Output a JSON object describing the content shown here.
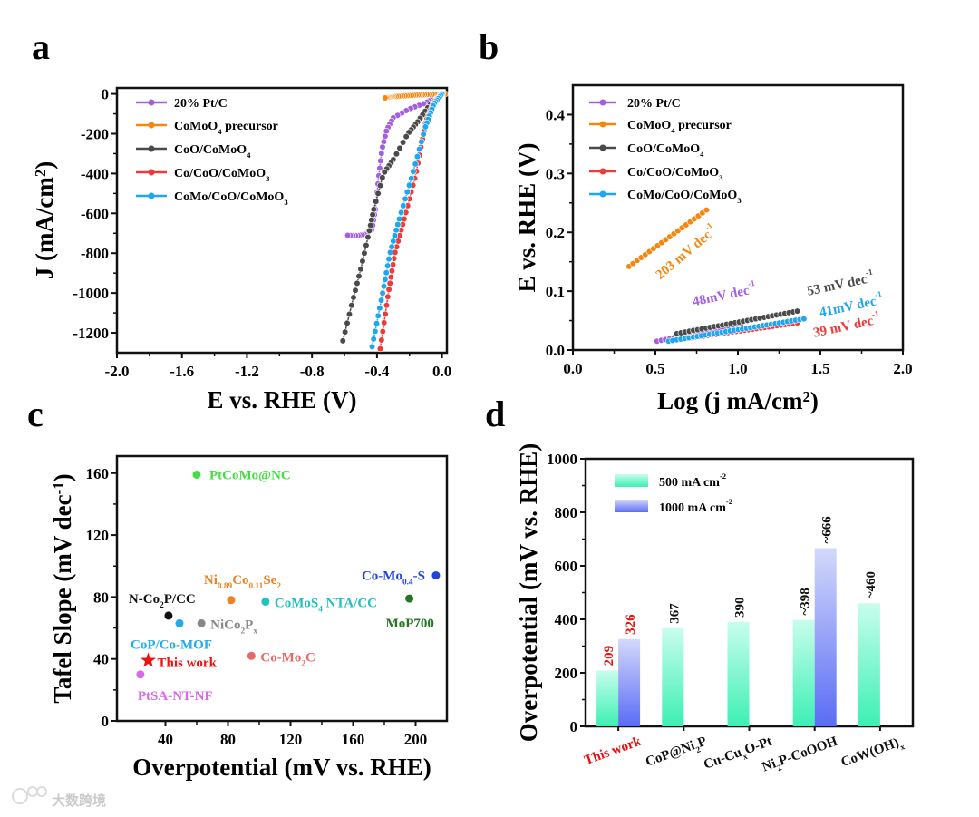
{
  "watermark": "大数跨境",
  "chart_data": [
    {
      "panel": "a",
      "type": "line",
      "xlabel": "E vs. RHE (V)",
      "ylabel": "J (mA/cm^{2})",
      "xlim": [
        -2.0,
        0.03
      ],
      "ylim": [
        -1300,
        30
      ],
      "xticks": [
        "-2.0",
        "-1.6",
        "-1.2",
        "-0.8",
        "-0.4",
        "0.0"
      ],
      "yticks": [
        "0",
        "-200",
        "-400",
        "-600",
        "-800",
        "-1000",
        "-1200"
      ],
      "series": [
        {
          "name": "20% Pt/C",
          "color": "#a45ee0",
          "points": [
            [
              0,
              0
            ],
            [
              -0.05,
              -20
            ],
            [
              -0.1,
              -45
            ],
            [
              -0.2,
              -75
            ],
            [
              -0.3,
              -120
            ],
            [
              -0.34,
              -180
            ],
            [
              -0.37,
              -280
            ],
            [
              -0.39,
              -420
            ],
            [
              -0.41,
              -580
            ],
            [
              -0.43,
              -680
            ],
            [
              -0.47,
              -705
            ],
            [
              -0.52,
              -712
            ],
            [
              -0.58,
              -710
            ]
          ]
        },
        {
          "name": "CoMoO_{4} precursor",
          "color": "#f5870f",
          "points": [
            [
              0.02,
              0
            ],
            [
              -0.1,
              -3
            ],
            [
              -0.2,
              -8
            ],
            [
              -0.3,
              -14
            ],
            [
              -0.35,
              -20
            ]
          ]
        },
        {
          "name": "CoO/CoMoO_{4}",
          "color": "#4a4a4a",
          "points": [
            [
              0,
              0
            ],
            [
              -0.08,
              -60
            ],
            [
              -0.15,
              -140
            ],
            [
              -0.21,
              -200
            ],
            [
              -0.3,
              -330
            ],
            [
              -0.36,
              -400
            ],
            [
              -0.42,
              -580
            ],
            [
              -0.45,
              -700
            ],
            [
              -0.5,
              -880
            ],
            [
              -0.55,
              -1040
            ],
            [
              -0.61,
              -1240
            ]
          ]
        },
        {
          "name": "Co/CoO/CoMoO_{3}",
          "color": "#ee3a3a",
          "points": [
            [
              0,
              0
            ],
            [
              -0.05,
              -40
            ],
            [
              -0.1,
              -140
            ],
            [
              -0.16,
              -400
            ],
            [
              -0.23,
              -620
            ],
            [
              -0.29,
              -800
            ],
            [
              -0.33,
              -1000
            ],
            [
              -0.38,
              -1280
            ]
          ]
        },
        {
          "name": "CoMo/CoO/CoMoO_{3}",
          "color": "#1ea6f0",
          "points": [
            [
              0,
              0
            ],
            [
              -0.05,
              -50
            ],
            [
              -0.1,
              -160
            ],
            [
              -0.18,
              -400
            ],
            [
              -0.26,
              -620
            ],
            [
              -0.32,
              -800
            ],
            [
              -0.37,
              -1020
            ],
            [
              -0.43,
              -1270
            ]
          ]
        }
      ]
    },
    {
      "panel": "b",
      "type": "line",
      "xlabel": "Log (j mA/cm^{2})",
      "ylabel": "E vs. RHE (V)",
      "xlim": [
        0,
        2.0
      ],
      "ylim": [
        0,
        0.45
      ],
      "xticks": [
        "0.0",
        "0.5",
        "1.0",
        "1.5",
        "2.0"
      ],
      "yticks": [
        "0.0",
        "0.1",
        "0.2",
        "0.3",
        "0.4"
      ],
      "series": [
        {
          "name": "20% Pt/C",
          "color": "#a45ee0",
          "x": [
            0.51,
            1.02
          ],
          "y": [
            0.015,
            0.045
          ],
          "annotation": "48mV dec^{-1}"
        },
        {
          "name": "CoMoO_{4} precursor",
          "color": "#f5870f",
          "x": [
            0.34,
            0.81
          ],
          "y": [
            0.142,
            0.238
          ],
          "annotation": "203 mV dec^{-1}"
        },
        {
          "name": "CoO/CoMoO_{4}",
          "color": "#4a4a4a",
          "x": [
            0.63,
            1.36
          ],
          "y": [
            0.028,
            0.066
          ],
          "annotation": "53 mV dec^{-1}"
        },
        {
          "name": "Co/CoO/CoMoO_{3}",
          "color": "#ee3a3a",
          "x": [
            0.62,
            1.36
          ],
          "y": [
            0.017,
            0.046
          ],
          "annotation": "39 mV dec^{-1}"
        },
        {
          "name": "CoMo/CoO/CoMoO_{3}",
          "color": "#1ea6f0",
          "x": [
            0.58,
            1.4
          ],
          "y": [
            0.015,
            0.053
          ],
          "annotation": "41mV dec^{-1}"
        }
      ]
    },
    {
      "panel": "c",
      "type": "scatter",
      "xlabel": "Overpotential (mV vs. RHE)",
      "ylabel": "Tafel Slope (mV dec^{-1})",
      "xlim": [
        9,
        220
      ],
      "ylim": [
        0,
        171
      ],
      "xticks": [
        "40",
        "80",
        "120",
        "160",
        "200"
      ],
      "yticks": [
        "0",
        "40",
        "80",
        "120",
        "160"
      ],
      "points": [
        {
          "label": "PtCoMo@NC",
          "x": 60,
          "y": 159,
          "color": "#44dd44"
        },
        {
          "label": "Ni_{0.89}Co_{0.11}Se_{2}",
          "x": 82,
          "y": 78,
          "color": "#f08020"
        },
        {
          "label": "N-Co_{2}P/CC",
          "x": 42,
          "y": 68,
          "color": "#111111"
        },
        {
          "label": "CoP/Co-MOF",
          "x": 49,
          "y": 63,
          "color": "#22aaee"
        },
        {
          "label": "NiCo_{2}P_{x}",
          "x": 63,
          "y": 63,
          "color": "#888888"
        },
        {
          "label": "CoMoS_{4} NTA/CC",
          "x": 104,
          "y": 77,
          "color": "#22c0c0"
        },
        {
          "label": "Co-Mo_{0.4}-S",
          "x": 213,
          "y": 94,
          "color": "#2244dd"
        },
        {
          "label": "MoP700",
          "x": 196,
          "y": 79,
          "color": "#227722"
        },
        {
          "label": "This work",
          "x": 29,
          "y": 39,
          "color": "#ee1111",
          "marker": "star"
        },
        {
          "label": "Co-Mo_{2}C",
          "x": 95,
          "y": 42,
          "color": "#ee6666"
        },
        {
          "label": "PtSA-NT-NF",
          "x": 24,
          "y": 30,
          "color": "#dd66ee"
        }
      ]
    },
    {
      "panel": "d",
      "type": "bar",
      "xlabel": "",
      "ylabel": "Overpotential (mV vs. RHE)",
      "ylim": [
        0,
        1000
      ],
      "yticks": [
        "0",
        "200",
        "400",
        "600",
        "800",
        "1000"
      ],
      "categories": [
        "This work",
        "CoP@Ni_{2}P",
        "Cu-Cu_{x}O-Pt",
        "Ni_{2}P-CoOOH",
        "CoW(OH)_{x}"
      ],
      "category_colors": [
        "#e81010",
        "#111111",
        "#111111",
        "#111111",
        "#111111"
      ],
      "series": [
        {
          "name": "500 mA cm^{-2}",
          "values": [
            209,
            367,
            390,
            398,
            460
          ],
          "labels": [
            "209",
            "367",
            "390",
            "~398",
            "~460"
          ]
        },
        {
          "name": "1000 mA cm^{-2}",
          "values": [
            326,
            null,
            null,
            666,
            null
          ],
          "labels": [
            "326",
            "",
            "",
            "~666",
            ""
          ]
        }
      ],
      "label_colors": [
        "#e81010",
        "#111111",
        "#111111",
        "#111111",
        "#111111"
      ]
    }
  ]
}
